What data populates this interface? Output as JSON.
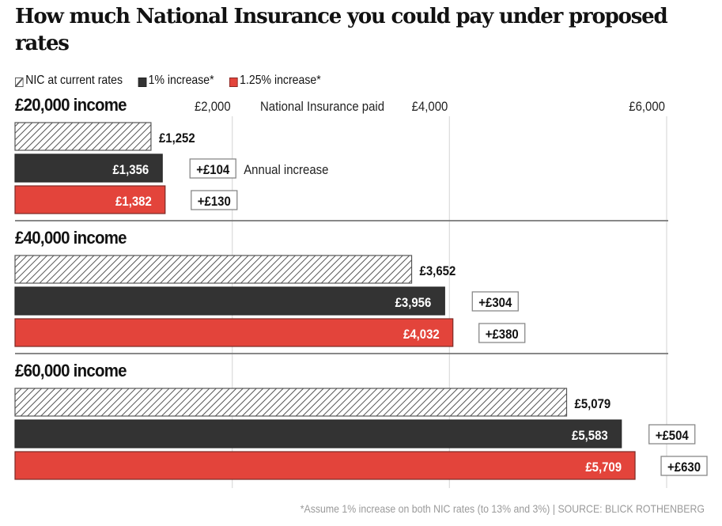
{
  "title": "How much National Insurance you could pay under proposed rates",
  "legend": [
    {
      "label": "NIC at current rates",
      "style": "hatched",
      "color": "#ffffff"
    },
    {
      "label": "1% increase*",
      "style": "solid",
      "color": "#333333"
    },
    {
      "label": "1.25% increase*",
      "style": "solid",
      "color": "#e3443b"
    }
  ],
  "footnote": "*Assume 1% increase on both NIC rates (to 13% and 3%) | SOURCE: BLICK ROTHENBERG",
  "annotations": {
    "axis_label": "National Insurance paid",
    "increase_label": "Annual increase"
  },
  "colors": {
    "current": "#ffffff",
    "hatch": "#555555",
    "one_percent": "#333333",
    "one_25_percent": "#e3443b",
    "grid": "#dddddd",
    "divider": "#777777"
  },
  "chart_data": {
    "type": "bar",
    "orientation": "horizontal",
    "title": "How much National Insurance you could pay under proposed rates",
    "xlabel": "National Insurance paid",
    "ylabel": "",
    "xlim": [
      0,
      6000
    ],
    "x_ticks": [
      2000,
      4000,
      6000
    ],
    "x_tick_labels": [
      "£2,000",
      "£4,000",
      "£6,000"
    ],
    "grid": true,
    "legend_position": "top-left",
    "categories": [
      "£20,000 income",
      "£40,000 income",
      "£60,000 income"
    ],
    "series": [
      {
        "name": "NIC at current rates",
        "values": [
          1252,
          3652,
          5079
        ],
        "labels": [
          "£1,252",
          "£3,652",
          "£5,079"
        ]
      },
      {
        "name": "1% increase*",
        "values": [
          1356,
          3956,
          5583
        ],
        "labels": [
          "£1,356",
          "£3,956",
          "£5,583"
        ],
        "increase_labels": [
          "+£104",
          "+£304",
          "+£504"
        ],
        "increases": [
          104,
          304,
          504
        ]
      },
      {
        "name": "1.25% increase*",
        "values": [
          1382,
          4032,
          5709
        ],
        "labels": [
          "£1,382",
          "£4,032",
          "£5,709"
        ],
        "increase_labels": [
          "+£130",
          "+£380",
          "+£630"
        ],
        "increases": [
          130,
          380,
          630
        ]
      }
    ]
  }
}
